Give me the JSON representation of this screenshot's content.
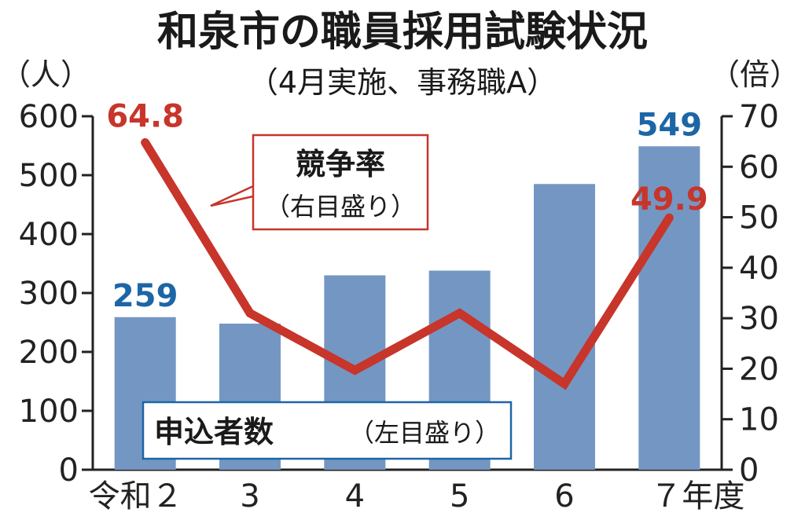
{
  "chart_data": {
    "type": "bar",
    "title": "和泉市の職員採用試験状況",
    "subtitle": "（4月実施、事務職A）",
    "categories": [
      "令和２",
      "3",
      "4",
      "5",
      "6",
      "７年度"
    ],
    "left_axis": {
      "unit": "（人）",
      "ticks": [
        "600",
        "500",
        "400",
        "300",
        "200",
        "100",
        "0"
      ],
      "ylim": [
        0,
        600
      ]
    },
    "right_axis": {
      "unit": "（倍）",
      "ticks": [
        "70",
        "60",
        "50",
        "40",
        "30",
        "20",
        "10",
        "0"
      ],
      "ylim": [
        0,
        70
      ]
    },
    "series": [
      {
        "name": "申込者数",
        "note": "（左目盛り）",
        "kind": "bar",
        "axis": "left",
        "color": "#7496c3",
        "values": [
          259,
          248,
          330,
          338,
          485,
          549
        ],
        "labels": [
          {
            "index": 0,
            "text": "259"
          },
          {
            "index": 5,
            "text": "549"
          }
        ]
      },
      {
        "name": "競争率",
        "note": "（右目盛り）",
        "kind": "line",
        "axis": "right",
        "color": "#c7352b",
        "values": [
          64.8,
          31,
          19.7,
          31,
          17,
          49.9
        ],
        "labels": [
          {
            "index": 0,
            "text": "64.8"
          },
          {
            "index": 5,
            "text": "49.9"
          }
        ]
      }
    ],
    "grid": false
  }
}
